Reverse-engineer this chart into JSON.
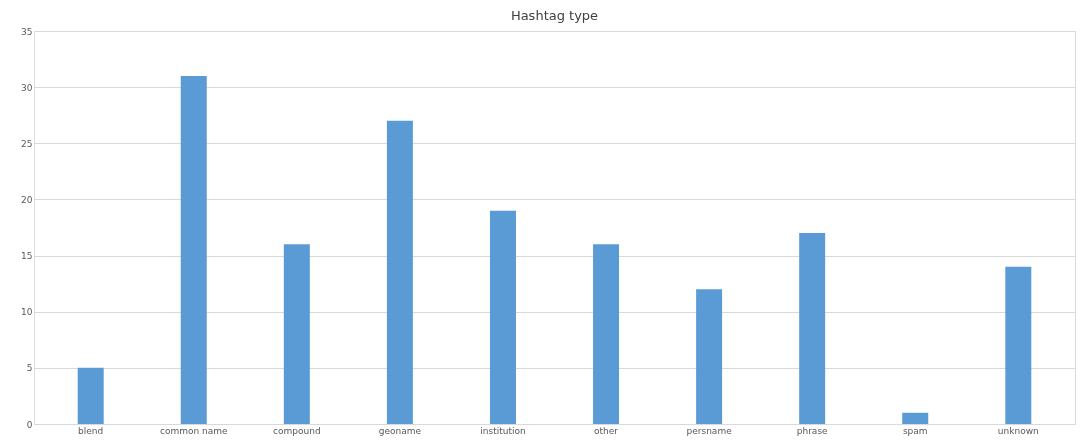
{
  "chart_data": {
    "type": "bar",
    "title": "Hashtag type",
    "categories": [
      "blend",
      "common name",
      "compound",
      "geoname",
      "institution",
      "other",
      "persname",
      "phrase",
      "spam",
      "unknown"
    ],
    "values": [
      5,
      31,
      16,
      27,
      19,
      16,
      12,
      17,
      1,
      14
    ],
    "color": "#5b9bd5",
    "ylim": [
      0,
      35
    ],
    "yticks": [
      0,
      5,
      10,
      15,
      20,
      25,
      30,
      35
    ],
    "grid": "y"
  }
}
